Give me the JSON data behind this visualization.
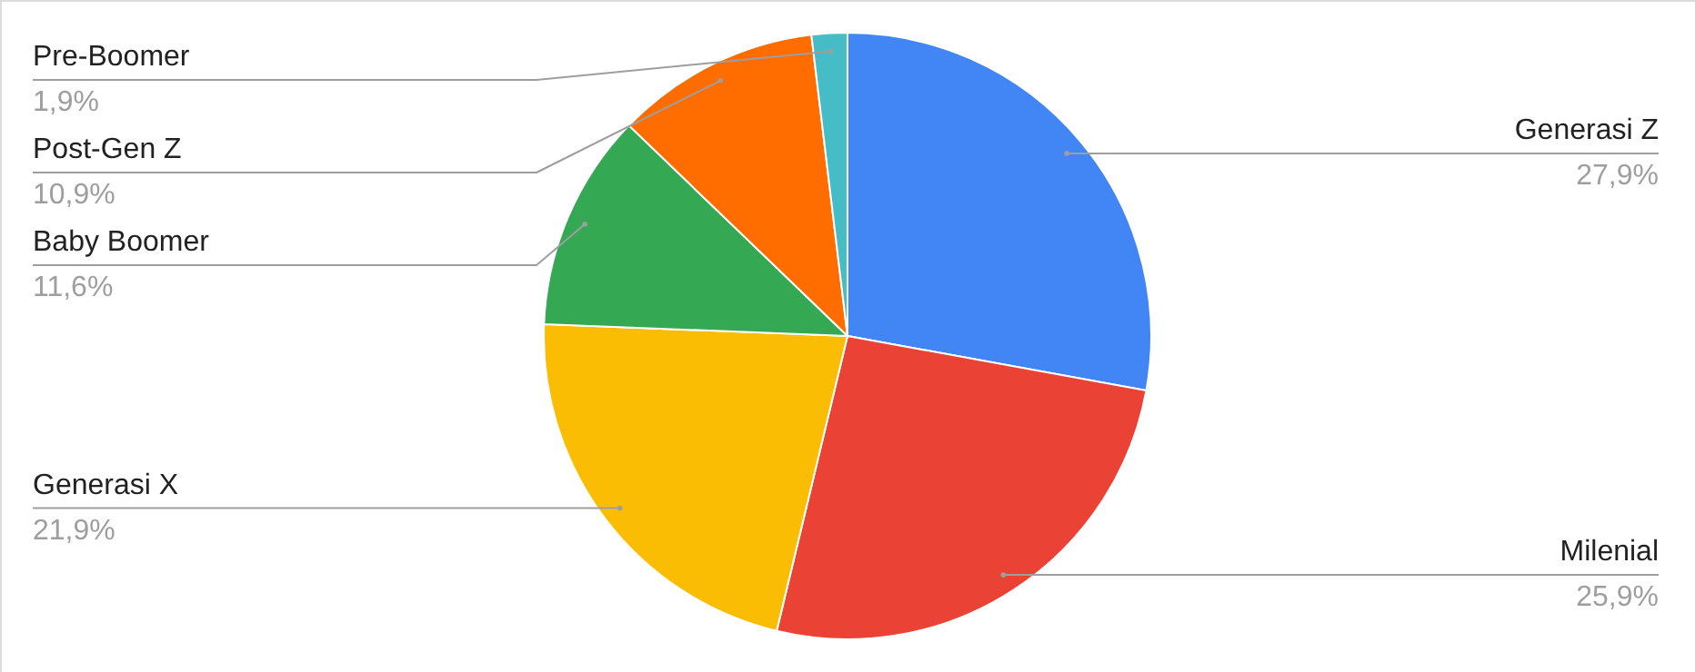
{
  "chart_data": {
    "type": "pie",
    "categories": [
      "Generasi Z",
      "Milenial",
      "Generasi X",
      "Baby Boomer",
      "Post-Gen Z",
      "Pre-Boomer"
    ],
    "values": [
      27.9,
      25.9,
      21.9,
      11.6,
      10.9,
      1.9
    ],
    "colors": [
      "#4285f4",
      "#ea4335",
      "#fbbc04",
      "#34a853",
      "#ff6d01",
      "#46bdc6"
    ],
    "value_labels": [
      "27,9%",
      "25,9%",
      "21,9%",
      "11,6%",
      "10,9%",
      "1,9%"
    ]
  }
}
